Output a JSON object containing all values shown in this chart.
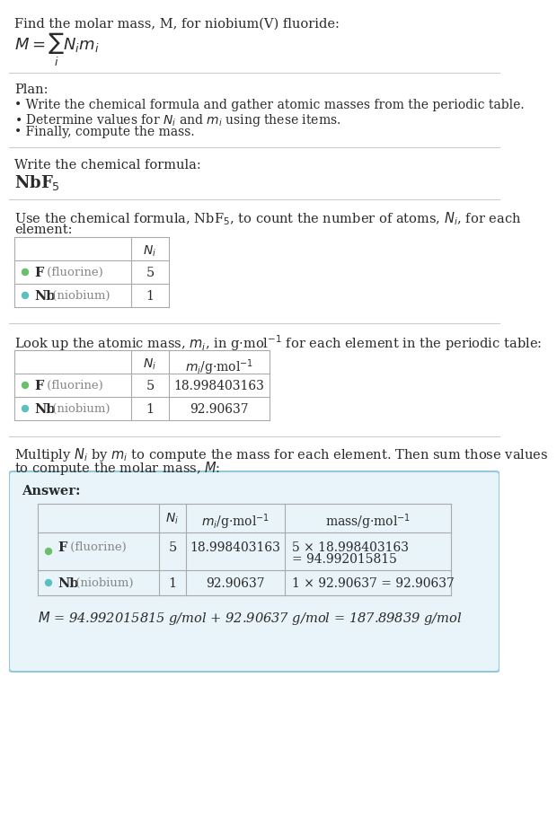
{
  "bg_color": "#ffffff",
  "text_color": "#2a2a2a",
  "gray_color": "#888888",
  "separator_color": "#cccccc",
  "table_border_color": "#aaaaaa",
  "answer_bg": "#e8f4fa",
  "answer_border": "#94c8dc",
  "F_color": "#6abf6a",
  "Nb_color": "#5bbfbf",
  "title_text": "Find the molar mass, M, for niobium(V) fluoride:",
  "plan_header": "Plan:",
  "plan_line1": "• Write the chemical formula and gather atomic masses from the periodic table.",
  "plan_line2": "• Determine values for $N_i$ and $m_i$ using these items.",
  "plan_line3": "• Finally, compute the mass.",
  "step1_header": "Write the chemical formula:",
  "step2_line1": "Use the chemical formula, NbF$_5$, to count the number of atoms, $N_i$, for each",
  "step2_line2": "element:",
  "step3_text": "Look up the atomic mass, $m_i$, in g$\\cdot$mol$^{-1}$ for each element in the periodic table:",
  "step4_line1": "Multiply $N_i$ by $m_i$ to compute the mass for each element. Then sum those values",
  "step4_line2": "to compute the molar mass, $M$:",
  "answer_label": "Answer:",
  "F_symbol": "F",
  "F_name": " (fluorine)",
  "Nb_symbol": "Nb",
  "Nb_name": " (niobium)",
  "F_Ni": "5",
  "Nb_Ni": "1",
  "F_mi": "18.998403163",
  "Nb_mi": "92.90637",
  "F_mass_line1": "5 × 18.998403163",
  "F_mass_line2": "= 94.992015815",
  "Nb_mass": "1 × 92.90637 = 92.90637",
  "final_eq": "$M$ = 94.992015815 g/mol + 92.90637 g/mol = 187.89839 g/mol"
}
